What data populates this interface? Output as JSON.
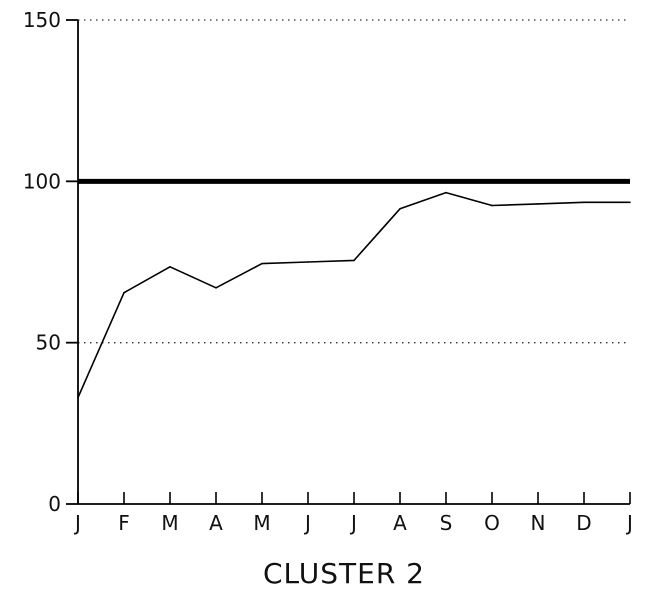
{
  "chart_data": {
    "type": "line",
    "title": "CLUSTER 2",
    "xlabel": "",
    "ylabel": "",
    "x": [
      "J",
      "F",
      "M",
      "A",
      "M",
      "J",
      "J",
      "A",
      "S",
      "O",
      "N",
      "D",
      "J"
    ],
    "ylim": [
      0,
      150
    ],
    "yticks": [
      0,
      50,
      100,
      150
    ],
    "grid": "dotted horizontal at 50 and 150",
    "reference_line": {
      "value": 100,
      "color": "#000000"
    },
    "series": [
      {
        "values": [
          33,
          65.5,
          73.5,
          67,
          74.5,
          75,
          75.5,
          91.5,
          96.5,
          92.5,
          93,
          93.5,
          93.5
        ]
      }
    ],
    "line_color": "#000000"
  }
}
